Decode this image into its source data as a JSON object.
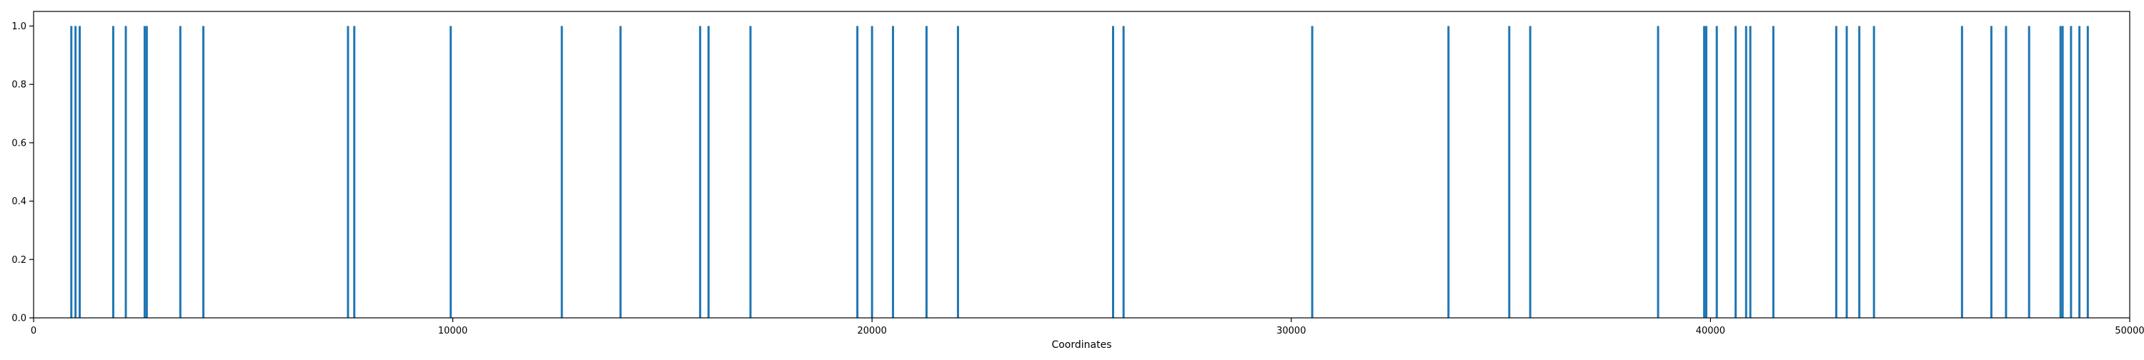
{
  "chart_data": {
    "type": "bar",
    "title": "",
    "xlabel": "Coordinates",
    "ylabel": "",
    "xlim": [
      0,
      50000
    ],
    "ylim": [
      0,
      1.05
    ],
    "x_ticks": [
      0,
      10000,
      20000,
      30000,
      40000,
      50000
    ],
    "y_ticks": [
      0.0,
      0.2,
      0.4,
      0.6,
      0.8,
      1.0
    ],
    "x_tick_labels": [
      "0",
      "10000",
      "20000",
      "30000",
      "40000",
      "50000"
    ],
    "y_tick_labels": [
      "0.0",
      "0.2",
      "0.4",
      "0.6",
      "0.8",
      "1.0"
    ],
    "grid": false,
    "legend": "none",
    "bar_color": "#1f77b4",
    "x": [
      900,
      1000,
      1100,
      1900,
      2200,
      2650,
      2700,
      3500,
      4050,
      7500,
      7650,
      9950,
      12600,
      14000,
      15900,
      16100,
      17100,
      19650,
      20000,
      20500,
      21300,
      22050,
      25750,
      26000,
      30500,
      33750,
      35200,
      35700,
      38750,
      39850,
      39900,
      40150,
      40600,
      40850,
      40950,
      41500,
      43000,
      43250,
      43550,
      43900,
      46000,
      46700,
      47050,
      47600,
      48350,
      48400,
      48600,
      48800,
      49000
    ],
    "values": [
      1,
      1,
      1,
      1,
      1,
      1,
      1,
      1,
      1,
      1,
      1,
      1,
      1,
      1,
      1,
      1,
      1,
      1,
      1,
      1,
      1,
      1,
      1,
      1,
      1,
      1,
      1,
      1,
      1,
      1,
      1,
      1,
      1,
      1,
      1,
      1,
      1,
      1,
      1,
      1,
      1,
      1,
      1,
      1,
      1,
      1,
      1,
      1,
      1
    ]
  }
}
